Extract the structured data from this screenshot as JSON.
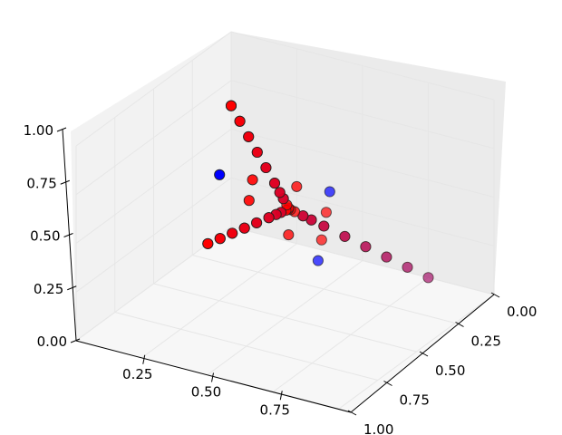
{
  "chart_data": {
    "type": "scatter",
    "projection": "3d",
    "title": "",
    "grid": true,
    "x_axis": {
      "range": [
        0,
        1
      ],
      "ticks": [
        "0.00",
        "0.25",
        "0.50",
        "0.75",
        "1.00"
      ]
    },
    "y_axis": {
      "range": [
        0,
        1
      ],
      "ticks": [
        "0.25",
        "0.50",
        "0.75"
      ]
    },
    "z_axis": {
      "range": [
        0,
        1
      ],
      "ticks": [
        "0.00",
        "0.25",
        "0.50",
        "0.75",
        "1.00"
      ]
    },
    "colors": {
      "blue_series": "#0000ff",
      "red_series": "#ff0000",
      "pane_left": "#f2f2f2",
      "pane_right": "#ebebeb",
      "pane_floor": "#f7f7f7"
    },
    "series": [
      {
        "color": "#0000ff",
        "points": [
          [
            0.0,
            1.0,
            0.0
          ],
          [
            1.0,
            0.0,
            0.0
          ],
          [
            0.0,
            0.0,
            1.0
          ],
          [
            0.05,
            0.9,
            0.05
          ],
          [
            0.9,
            0.05,
            0.05
          ],
          [
            0.05,
            0.05,
            0.9
          ],
          [
            0.1,
            0.8,
            0.1
          ],
          [
            0.8,
            0.1,
            0.1
          ],
          [
            0.1,
            0.1,
            0.8
          ],
          [
            0.15,
            0.7,
            0.15
          ],
          [
            0.7,
            0.15,
            0.15
          ],
          [
            0.15,
            0.15,
            0.7
          ],
          [
            0.2,
            0.6,
            0.2
          ],
          [
            0.6,
            0.2,
            0.2
          ],
          [
            0.2,
            0.2,
            0.6
          ],
          [
            0.25,
            0.5,
            0.25
          ],
          [
            0.5,
            0.25,
            0.25
          ],
          [
            0.25,
            0.25,
            0.5
          ],
          [
            0.28,
            0.44,
            0.28
          ],
          [
            0.44,
            0.28,
            0.28
          ],
          [
            0.28,
            0.28,
            0.44
          ],
          [
            0.3,
            0.4,
            0.3
          ],
          [
            0.4,
            0.3,
            0.3
          ],
          [
            0.3,
            0.3,
            0.4
          ],
          [
            0.0,
            0.5,
            0.5
          ],
          [
            0.5,
            0.0,
            0.5
          ],
          [
            0.5,
            0.5,
            0.0
          ]
        ]
      },
      {
        "color": "#ff0000",
        "points": [
          [
            0.0,
            1.0,
            0.0
          ],
          [
            1.0,
            0.0,
            0.0
          ],
          [
            0.0,
            0.0,
            1.0
          ],
          [
            0.05,
            0.9,
            0.05
          ],
          [
            0.9,
            0.05,
            0.05
          ],
          [
            0.05,
            0.05,
            0.9
          ],
          [
            0.1,
            0.8,
            0.1
          ],
          [
            0.8,
            0.1,
            0.1
          ],
          [
            0.1,
            0.1,
            0.8
          ],
          [
            0.15,
            0.7,
            0.15
          ],
          [
            0.7,
            0.15,
            0.15
          ],
          [
            0.15,
            0.15,
            0.7
          ],
          [
            0.2,
            0.6,
            0.2
          ],
          [
            0.6,
            0.2,
            0.2
          ],
          [
            0.2,
            0.2,
            0.6
          ],
          [
            0.25,
            0.5,
            0.25
          ],
          [
            0.5,
            0.25,
            0.25
          ],
          [
            0.25,
            0.25,
            0.5
          ],
          [
            0.28,
            0.44,
            0.28
          ],
          [
            0.44,
            0.28,
            0.28
          ],
          [
            0.28,
            0.28,
            0.44
          ],
          [
            0.3,
            0.4,
            0.3
          ],
          [
            0.4,
            0.3,
            0.3
          ],
          [
            0.3,
            0.3,
            0.4
          ],
          [
            0.32,
            0.36,
            0.32
          ],
          [
            0.36,
            0.32,
            0.32
          ],
          [
            0.32,
            0.32,
            0.36
          ],
          [
            0.34,
            0.33,
            0.33
          ],
          [
            0.33,
            0.34,
            0.33
          ],
          [
            0.33,
            0.33,
            0.34
          ],
          [
            0.15,
            0.35,
            0.5
          ],
          [
            0.35,
            0.15,
            0.5
          ],
          [
            0.5,
            0.15,
            0.35
          ],
          [
            0.5,
            0.35,
            0.15
          ],
          [
            0.35,
            0.5,
            0.15
          ],
          [
            0.15,
            0.5,
            0.35
          ]
        ]
      }
    ]
  }
}
